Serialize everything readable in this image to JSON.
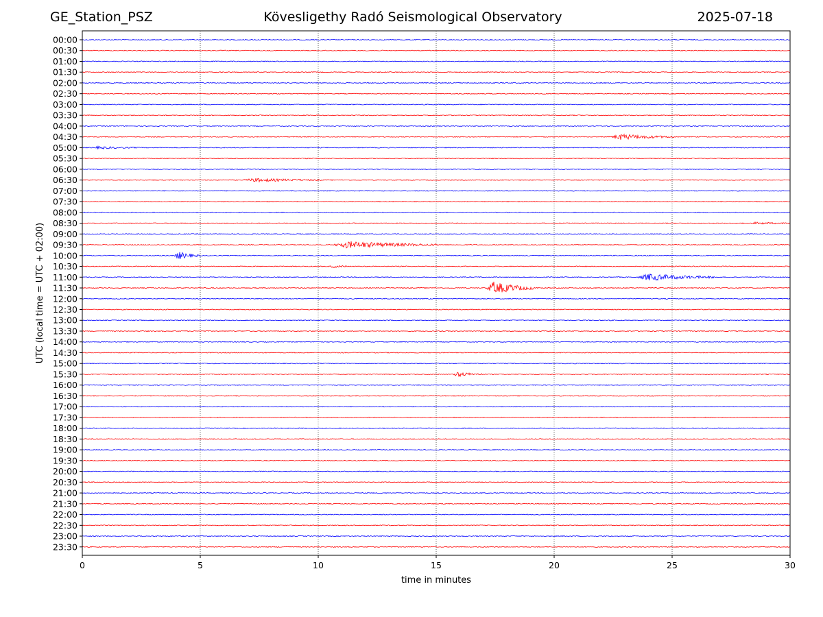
{
  "header": {
    "station": "GE_Station_PSZ",
    "observatory": "Kövesligethy Radó Seismological Observatory",
    "date": "2025-07-18"
  },
  "chart_data": {
    "type": "line",
    "title": "Kövesligethy Radó Seismological Observatory",
    "xlabel": "time in minutes",
    "ylabel": "UTC (local time = UTC + 02:00)",
    "xlim": [
      0,
      30
    ],
    "x_ticks": [
      0,
      5,
      10,
      15,
      20,
      25,
      30
    ],
    "grid": "vertical dotted lines at 5-minute intervals",
    "series_colors": [
      "#0000ff",
      "#ff0000"
    ],
    "rows": [
      {
        "label": "00:00",
        "color": "#0000ff",
        "events": []
      },
      {
        "label": "00:30",
        "color": "#ff0000",
        "events": []
      },
      {
        "label": "01:00",
        "color": "#0000ff",
        "events": []
      },
      {
        "label": "01:30",
        "color": "#ff0000",
        "events": []
      },
      {
        "label": "02:00",
        "color": "#0000ff",
        "events": []
      },
      {
        "label": "02:30",
        "color": "#ff0000",
        "events": []
      },
      {
        "label": "03:00",
        "color": "#0000ff",
        "events": []
      },
      {
        "label": "03:30",
        "color": "#ff0000",
        "events": []
      },
      {
        "label": "04:00",
        "color": "#0000ff",
        "events": []
      },
      {
        "label": "04:30",
        "color": "#ff0000",
        "events": [
          {
            "start": 22.4,
            "end": 25.2,
            "amp": 0.25
          }
        ]
      },
      {
        "label": "05:00",
        "color": "#0000ff",
        "events": [
          {
            "start": 0.4,
            "end": 2.5,
            "amp": 0.1
          }
        ]
      },
      {
        "label": "05:30",
        "color": "#ff0000",
        "events": []
      },
      {
        "label": "06:00",
        "color": "#0000ff",
        "events": []
      },
      {
        "label": "06:30",
        "color": "#ff0000",
        "events": [
          {
            "start": 6.8,
            "end": 10.2,
            "amp": 0.14
          }
        ]
      },
      {
        "label": "07:00",
        "color": "#0000ff",
        "events": []
      },
      {
        "label": "07:30",
        "color": "#ff0000",
        "events": []
      },
      {
        "label": "08:00",
        "color": "#0000ff",
        "events": []
      },
      {
        "label": "08:30",
        "color": "#ff0000",
        "events": [
          {
            "start": 28.3,
            "end": 30.0,
            "amp": 0.08
          }
        ]
      },
      {
        "label": "09:00",
        "color": "#0000ff",
        "events": []
      },
      {
        "label": "09:30",
        "color": "#ff0000",
        "events": [
          {
            "start": 10.6,
            "end": 15.2,
            "amp": 0.3
          }
        ]
      },
      {
        "label": "10:00",
        "color": "#0000ff",
        "events": [
          {
            "start": 3.9,
            "end": 5.0,
            "amp": 0.35
          }
        ]
      },
      {
        "label": "10:30",
        "color": "#ff0000",
        "events": [
          {
            "start": 10.5,
            "end": 11.2,
            "amp": 0.12
          }
        ]
      },
      {
        "label": "11:00",
        "color": "#0000ff",
        "events": [
          {
            "start": 23.5,
            "end": 27.0,
            "amp": 0.3
          }
        ]
      },
      {
        "label": "11:30",
        "color": "#ff0000",
        "events": [
          {
            "start": 17.1,
            "end": 19.3,
            "amp": 0.55
          }
        ]
      },
      {
        "label": "12:00",
        "color": "#0000ff",
        "events": []
      },
      {
        "label": "12:30",
        "color": "#ff0000",
        "events": []
      },
      {
        "label": "13:00",
        "color": "#0000ff",
        "events": []
      },
      {
        "label": "13:30",
        "color": "#ff0000",
        "events": []
      },
      {
        "label": "14:00",
        "color": "#0000ff",
        "events": []
      },
      {
        "label": "14:30",
        "color": "#ff0000",
        "events": []
      },
      {
        "label": "15:00",
        "color": "#0000ff",
        "events": []
      },
      {
        "label": "15:30",
        "color": "#ff0000",
        "events": [
          {
            "start": 15.7,
            "end": 17.0,
            "amp": 0.2
          }
        ]
      },
      {
        "label": "16:00",
        "color": "#0000ff",
        "events": []
      },
      {
        "label": "16:30",
        "color": "#ff0000",
        "events": []
      },
      {
        "label": "17:00",
        "color": "#0000ff",
        "events": []
      },
      {
        "label": "17:30",
        "color": "#ff0000",
        "events": []
      },
      {
        "label": "18:00",
        "color": "#0000ff",
        "events": []
      },
      {
        "label": "18:30",
        "color": "#ff0000",
        "events": []
      },
      {
        "label": "19:00",
        "color": "#0000ff",
        "events": []
      },
      {
        "label": "19:30",
        "color": "#ff0000",
        "events": []
      },
      {
        "label": "20:00",
        "color": "#0000ff",
        "events": []
      },
      {
        "label": "20:30",
        "color": "#ff0000",
        "events": []
      },
      {
        "label": "21:00",
        "color": "#0000ff",
        "events": []
      },
      {
        "label": "21:30",
        "color": "#ff0000",
        "events": []
      },
      {
        "label": "22:00",
        "color": "#0000ff",
        "events": []
      },
      {
        "label": "22:30",
        "color": "#ff0000",
        "events": []
      },
      {
        "label": "23:00",
        "color": "#0000ff",
        "events": []
      },
      {
        "label": "23:30",
        "color": "#ff0000",
        "events": []
      }
    ]
  }
}
